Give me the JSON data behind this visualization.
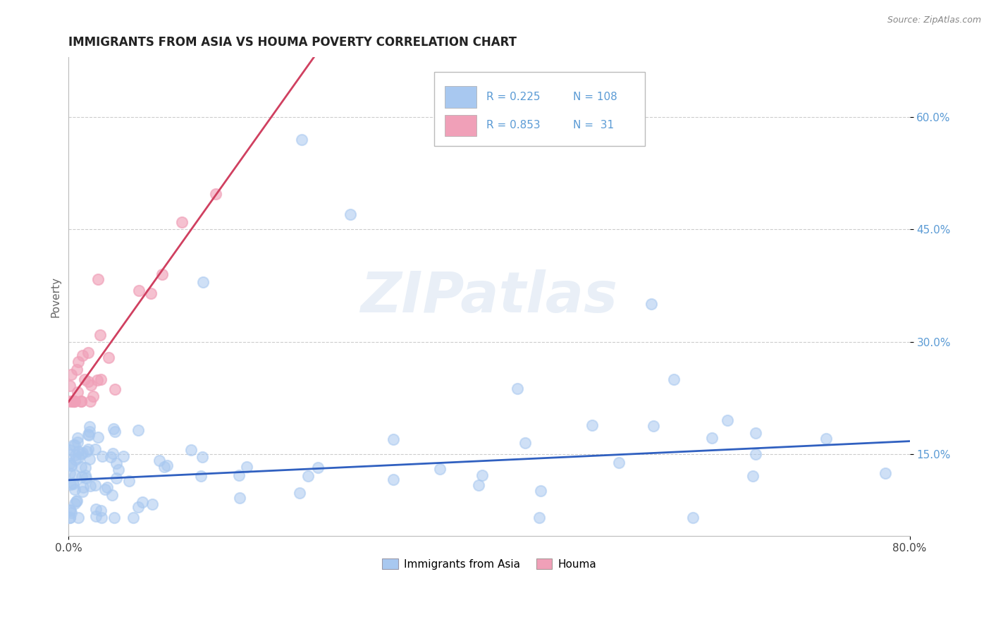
{
  "title": "IMMIGRANTS FROM ASIA VS HOUMA POVERTY CORRELATION CHART",
  "source_text": "Source: ZipAtlas.com",
  "watermark": "ZIPatlas",
  "ylabel": "Poverty",
  "xlim": [
    0.0,
    0.8
  ],
  "ylim": [
    0.04,
    0.68
  ],
  "blue_color": "#A8C8F0",
  "pink_color": "#F0A0B8",
  "blue_line_color": "#3060C0",
  "pink_line_color": "#D04060",
  "legend_R1": "0.225",
  "legend_N1": "108",
  "legend_R2": "0.853",
  "legend_N2": "31",
  "legend_label1": "Immigrants from Asia",
  "legend_label2": "Houma",
  "ytick_vals": [
    0.15,
    0.3,
    0.45,
    0.6
  ],
  "ytick_labels": [
    "15.0%",
    "30.0%",
    "45.0%",
    "60.0%"
  ],
  "blue_intercept": 0.115,
  "blue_slope": 0.065,
  "pink_intercept": 0.22,
  "pink_slope": 2.1
}
